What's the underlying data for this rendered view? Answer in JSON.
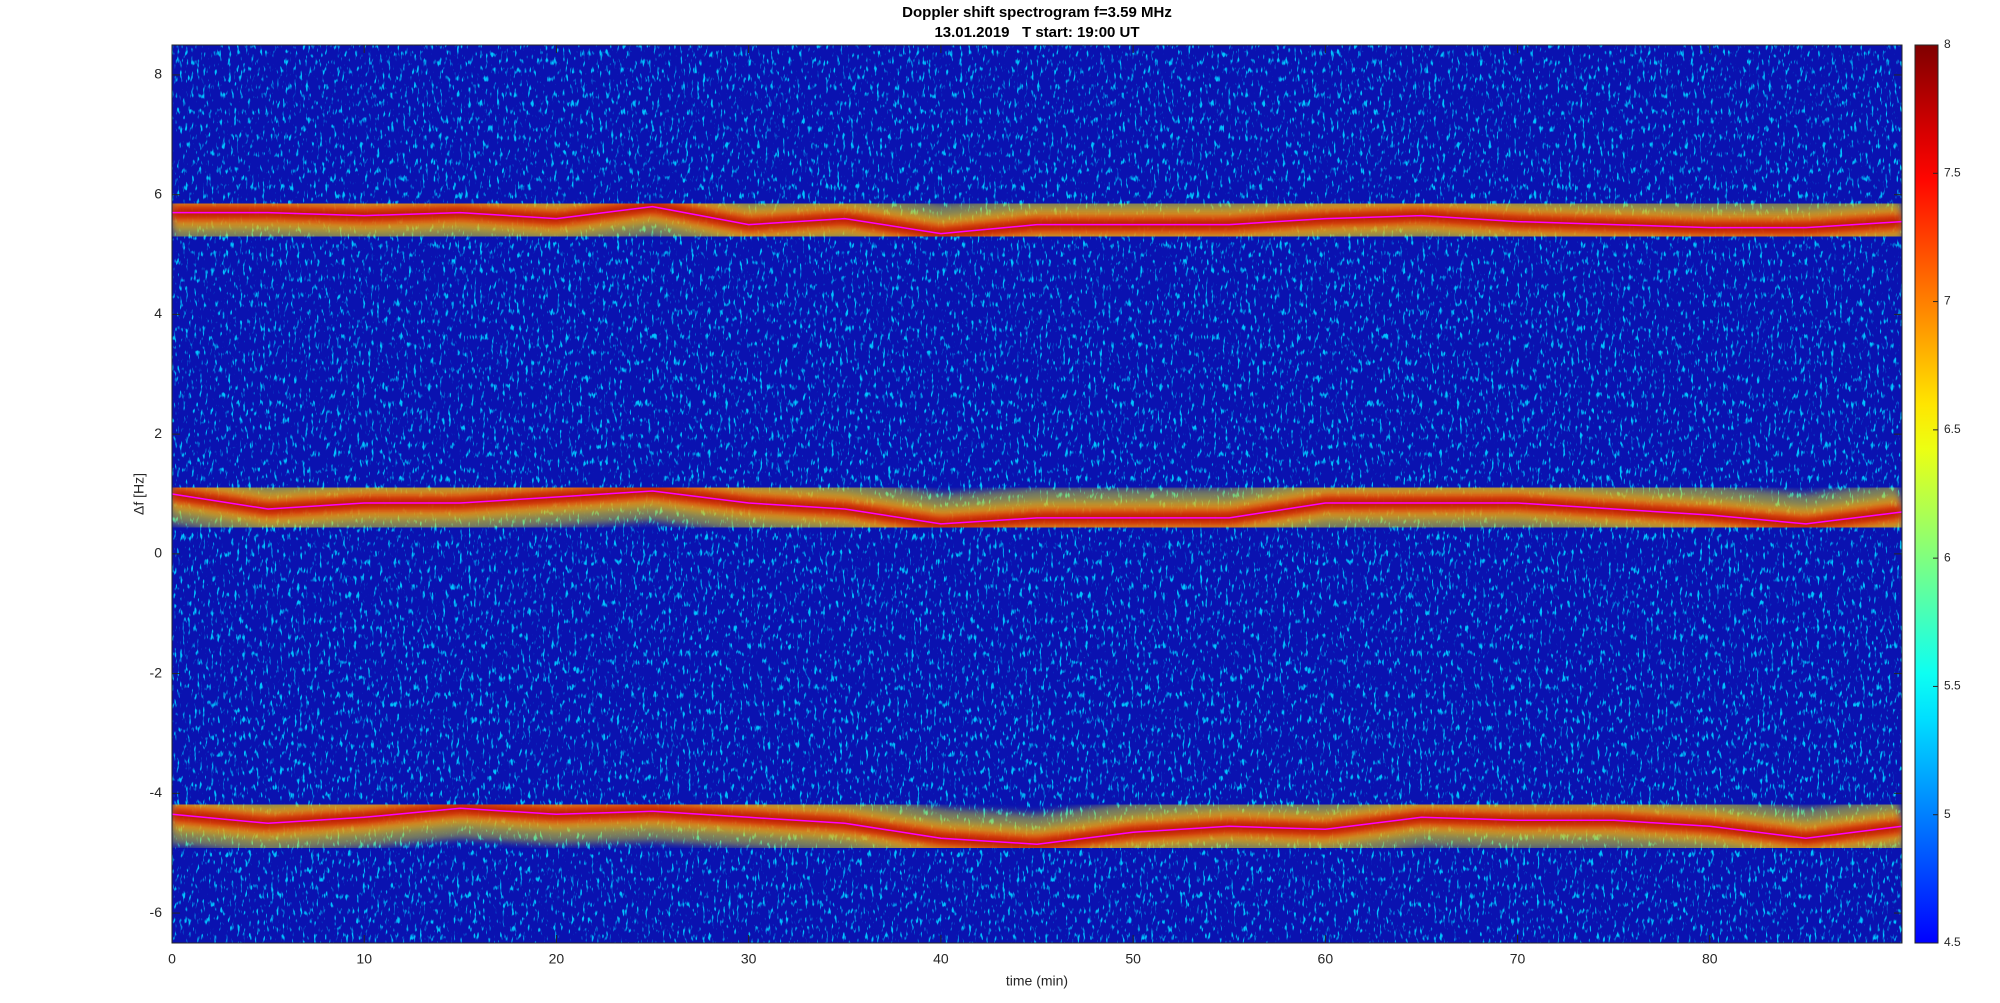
{
  "chart_data": {
    "type": "spectrogram",
    "title": "Doppler shift spectrogram f=3.59 MHz",
    "subtitle": "13.01.2019   T start: 19:00 UT",
    "x_label": "time (min)",
    "y_label": "Δf [Hz]",
    "xlim": [
      0,
      90
    ],
    "xticks": [
      0,
      10,
      20,
      30,
      40,
      50,
      60,
      70,
      80
    ],
    "ylim": [
      -6.5,
      8.5
    ],
    "yticks": [
      -6,
      -4,
      -2,
      0,
      2,
      4,
      6,
      8
    ],
    "colormap": "jet",
    "clim": [
      4.5,
      8
    ],
    "cticks": [
      4.5,
      5,
      5.5,
      6,
      6.5,
      7,
      7.5,
      8
    ],
    "x": [
      0,
      5,
      10,
      15,
      20,
      25,
      30,
      35,
      40,
      45,
      50,
      55,
      60,
      65,
      70,
      75,
      80,
      85,
      90
    ],
    "series": [
      {
        "color": "#ff00ff",
        "values": [
          5.7,
          5.7,
          5.65,
          5.7,
          5.6,
          5.8,
          5.5,
          5.6,
          5.35,
          5.5,
          5.5,
          5.5,
          5.6,
          5.65,
          5.55,
          5.5,
          5.45,
          5.45,
          5.55
        ]
      },
      {
        "color": "#ff00ff",
        "values": [
          1.0,
          0.75,
          0.85,
          0.85,
          0.95,
          1.05,
          0.85,
          0.75,
          0.5,
          0.6,
          0.6,
          0.6,
          0.85,
          0.85,
          0.85,
          0.75,
          0.65,
          0.5,
          0.7
        ]
      },
      {
        "color": "#ff00ff",
        "values": [
          -4.35,
          -4.5,
          -4.4,
          -4.25,
          -4.35,
          -4.3,
          -4.4,
          -4.5,
          -4.75,
          -4.85,
          -4.65,
          -4.55,
          -4.6,
          -4.4,
          -4.45,
          -4.45,
          -4.55,
          -4.75,
          -4.55
        ]
      }
    ]
  }
}
